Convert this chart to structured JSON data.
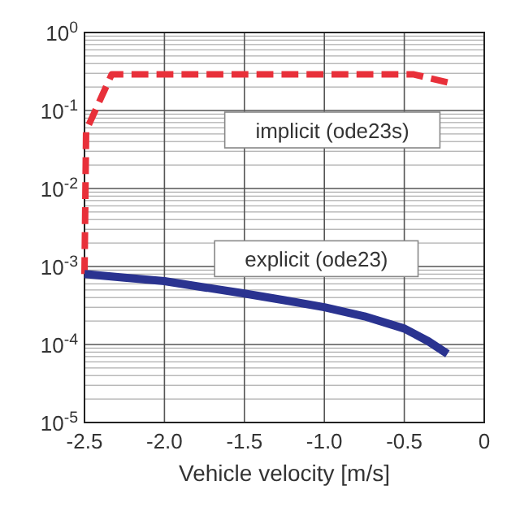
{
  "chart_data": {
    "type": "line",
    "xlabel": "Vehicle velocity  [m/s]",
    "log": "y",
    "grid": true,
    "legend": false,
    "xlim": [
      -2.5,
      0
    ],
    "xticks": [
      {
        "value": -2.5,
        "label": "-2.5"
      },
      {
        "value": -2,
        "label": "-2.0"
      },
      {
        "value": -1.5,
        "label": "-1.5"
      },
      {
        "value": -1,
        "label": "-1.0"
      },
      {
        "value": -0.5,
        "label": "-0.5"
      },
      {
        "value": 0,
        "label": "0"
      }
    ],
    "ylim": [
      1e-05,
      1
    ],
    "yticks": [
      {
        "value": 1e-05,
        "label": "10$^{-5}$"
      },
      {
        "value": 0.0001,
        "label": "10$^{-4}$"
      },
      {
        "value": 0.001,
        "label": "10$^{-3}$"
      },
      {
        "value": 0.01,
        "label": "10$^{-2}$"
      },
      {
        "value": 0.1,
        "label": "10$^{-1}$"
      },
      {
        "value": 1,
        "label": "10$^{0}$"
      }
    ],
    "series": [
      {
        "name": "implicit (ode23s)",
        "color": "#e8303a",
        "line_style": "dashed",
        "x": [
          -2.5,
          -2.49,
          -2.33,
          -1.5,
          -0.44,
          -0.23
        ],
        "values": [
          0.0008,
          0.055,
          0.29,
          0.29,
          0.29,
          0.23
        ]
      },
      {
        "name": "explicit (ode23)",
        "color": "#2a3390",
        "line_style": "solid",
        "x": [
          -2.5,
          -2.25,
          -2.0,
          -1.75,
          -1.5,
          -1.25,
          -1.0,
          -0.75,
          -0.5,
          -0.35,
          -0.23
        ],
        "values": [
          0.0008,
          0.00072,
          0.00065,
          0.00054,
          0.00045,
          0.00037,
          0.0003,
          0.00023,
          0.00016,
          0.00011,
          7.6e-05
        ]
      }
    ]
  }
}
